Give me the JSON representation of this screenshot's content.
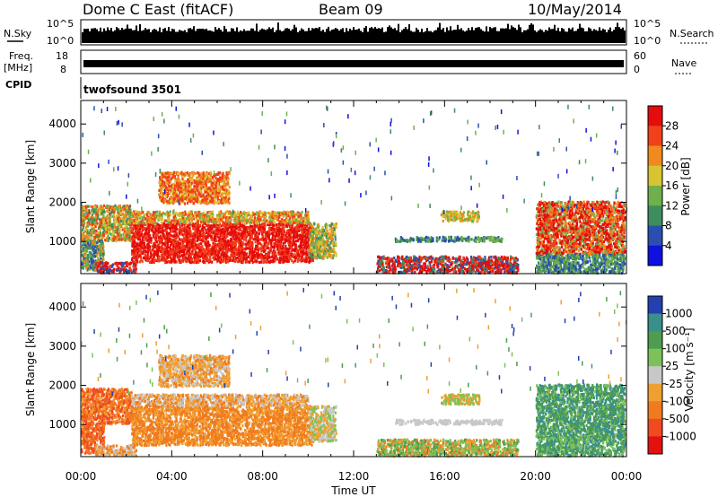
{
  "header": {
    "station": "Dome C East (fitACF)",
    "beam": "Beam 09",
    "date": "10/May/2014"
  },
  "nsky_panel": {
    "left_label": "N.Sky",
    "right_label": "N.Search",
    "left_ticks": [
      "10^5",
      "10^0"
    ],
    "right_ticks": [
      "10^5",
      "10^0"
    ]
  },
  "freq_panel": {
    "left_label_line1": "Freq.",
    "left_label_line2": "[MHz]",
    "right_label": "Nave",
    "left_ticks": [
      "18",
      "8"
    ],
    "right_ticks": [
      "60",
      "0"
    ]
  },
  "cpid": {
    "label": "CPID",
    "value": "twofsound 3501"
  },
  "chart_data": [
    {
      "type": "heatmap",
      "ylabel": "Slant Range [km]",
      "colorbar_label": "Power [dB]",
      "ylim": [
        180,
        4600
      ],
      "xlim_hours": [
        0,
        24
      ],
      "y_ticks": [
        1000,
        2000,
        3000,
        4000
      ],
      "colorbar_ticks": [
        "4",
        "8",
        "12",
        "16",
        "20",
        "24",
        "28"
      ],
      "colorbar_range": [
        0,
        32
      ],
      "colors": [
        "#1010e0",
        "#2a4fb0",
        "#3e8d5e",
        "#6fb04c",
        "#d8c431",
        "#f08a1d",
        "#f0411a",
        "#e50c0c"
      ]
    },
    {
      "type": "heatmap",
      "ylabel": "Slant Range [km]",
      "colorbar_label": "Velocity [m s⁻¹]",
      "ylim": [
        180,
        4600
      ],
      "xlim_hours": [
        0,
        24
      ],
      "y_ticks": [
        1000,
        2000,
        3000,
        4000
      ],
      "colorbar_ticks": [
        "1000",
        "500",
        "100",
        "25",
        "-25",
        "-100",
        "-500",
        "-1000"
      ],
      "colors": [
        "#2440b0",
        "#3a8f8a",
        "#4d9c4f",
        "#7cc25a",
        "#c8c8c8",
        "#f0a030",
        "#f07a20",
        "#f04a20",
        "#e51010"
      ]
    }
  ],
  "x_axis": {
    "ticks": [
      "00:00",
      "04:00",
      "08:00",
      "12:00",
      "16:00",
      "20:00",
      "00:00"
    ],
    "label": "Time UT"
  }
}
